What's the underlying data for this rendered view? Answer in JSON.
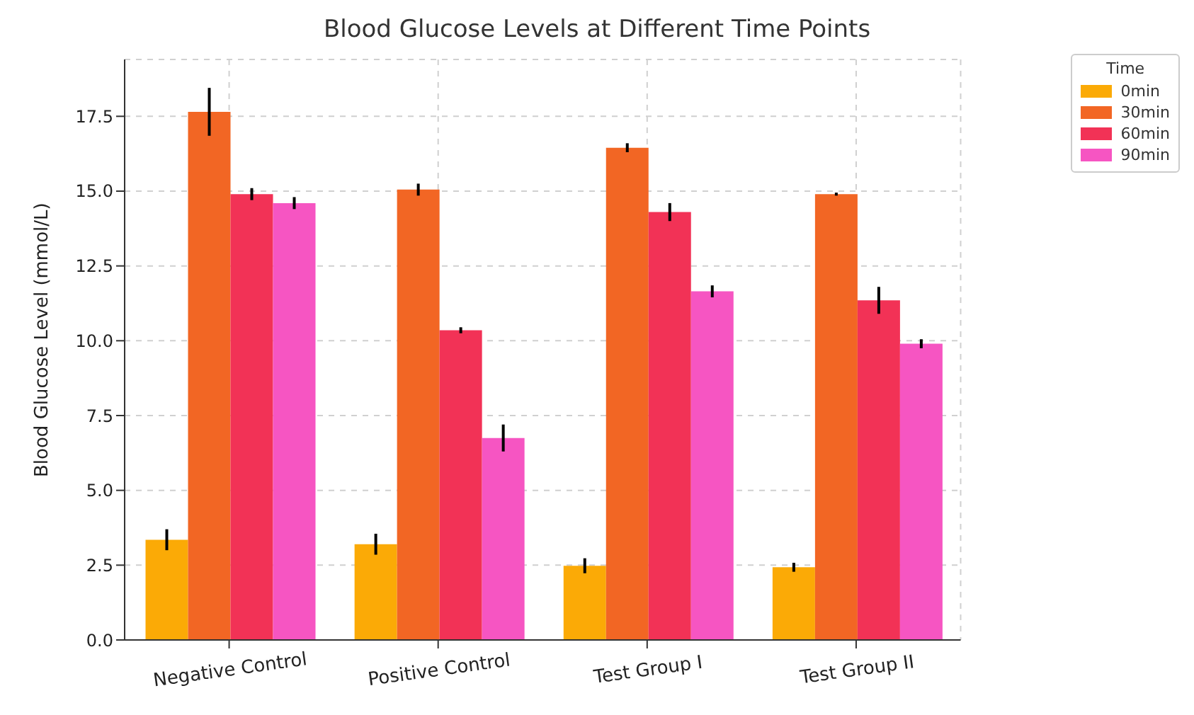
{
  "chart_data": {
    "type": "bar",
    "title": "Blood Glucose Levels at Different Time Points",
    "ylabel": "Blood Glucose Level (mmol/L)",
    "legend_title": "Time",
    "categories": [
      "Negative Control",
      "Positive Control",
      "Test Group I",
      "Test Group II"
    ],
    "series": [
      {
        "name": "0min",
        "color": "#fbaa06",
        "values": [
          3.35,
          3.2,
          2.48,
          2.43
        ],
        "errors": [
          0.35,
          0.35,
          0.25,
          0.15
        ]
      },
      {
        "name": "30min",
        "color": "#f26624",
        "values": [
          17.65,
          15.05,
          16.45,
          14.9
        ],
        "errors": [
          0.8,
          0.2,
          0.15,
          0.05
        ]
      },
      {
        "name": "60min",
        "color": "#f23256",
        "values": [
          14.9,
          10.35,
          14.3,
          11.35
        ],
        "errors": [
          0.2,
          0.1,
          0.3,
          0.45
        ]
      },
      {
        "name": "90min",
        "color": "#f655c2",
        "values": [
          14.6,
          6.75,
          11.65,
          9.9
        ],
        "errors": [
          0.2,
          0.45,
          0.2,
          0.15
        ]
      }
    ],
    "ylim": [
      0,
      19.4
    ],
    "yticks": [
      {
        "value": 0,
        "label": "0.0"
      },
      2.5,
      {
        "value": 5,
        "label": "5.0"
      },
      7.5,
      {
        "value": 10,
        "label": "10.0"
      },
      12.5,
      {
        "value": 15,
        "label": "15.0"
      },
      17.5
    ],
    "grid": true,
    "legend": "top right"
  }
}
